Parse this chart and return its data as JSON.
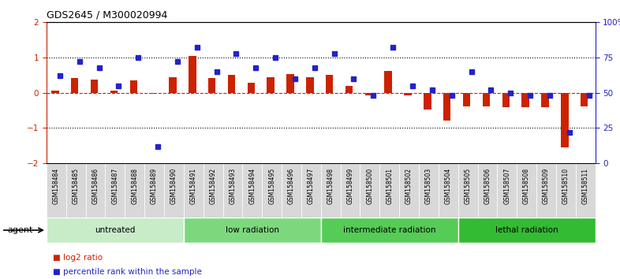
{
  "title": "GDS2645 / M300020994",
  "samples": [
    "GSM158484",
    "GSM158485",
    "GSM158486",
    "GSM158487",
    "GSM158488",
    "GSM158489",
    "GSM158490",
    "GSM158491",
    "GSM158492",
    "GSM158493",
    "GSM158494",
    "GSM158495",
    "GSM158496",
    "GSM158497",
    "GSM158498",
    "GSM158499",
    "GSM158500",
    "GSM158501",
    "GSM158502",
    "GSM158503",
    "GSM158504",
    "GSM158505",
    "GSM158506",
    "GSM158507",
    "GSM158508",
    "GSM158509",
    "GSM158510",
    "GSM158511"
  ],
  "log2_ratio": [
    0.05,
    0.42,
    0.38,
    0.05,
    0.35,
    -0.02,
    0.45,
    1.05,
    0.42,
    0.5,
    0.28,
    0.45,
    0.52,
    0.45,
    0.5,
    0.2,
    -0.08,
    0.62,
    -0.08,
    -0.48,
    -0.8,
    -0.38,
    -0.38,
    -0.42,
    -0.4,
    -0.42,
    -1.55,
    -0.38
  ],
  "percentile_rank": [
    62,
    72,
    68,
    55,
    75,
    12,
    72,
    82,
    65,
    78,
    68,
    75,
    60,
    68,
    78,
    60,
    48,
    82,
    55,
    52,
    48,
    65,
    52,
    50,
    48,
    48,
    22,
    48
  ],
  "groups": [
    {
      "label": "untreated",
      "start": 0,
      "end": 6,
      "color": "#c8ebc8"
    },
    {
      "label": "low radiation",
      "start": 7,
      "end": 13,
      "color": "#7dd87d"
    },
    {
      "label": "intermediate radiation",
      "start": 14,
      "end": 20,
      "color": "#55cc55"
    },
    {
      "label": "lethal radiation",
      "start": 21,
      "end": 27,
      "color": "#33bb33"
    }
  ],
  "bar_color_red": "#cc2200",
  "bar_color_blue": "#2222cc",
  "ylim_left": [
    -2,
    2
  ],
  "ylim_right": [
    0,
    100
  ],
  "yticks_left": [
    -2,
    -1,
    0,
    1,
    2
  ],
  "yticks_right": [
    0,
    25,
    50,
    75,
    100
  ],
  "agent_label": "agent",
  "legend_red": "log2 ratio",
  "legend_blue": "percentile rank within the sample",
  "bg_color": "#ffffff",
  "label_bg": "#d8d8d8"
}
